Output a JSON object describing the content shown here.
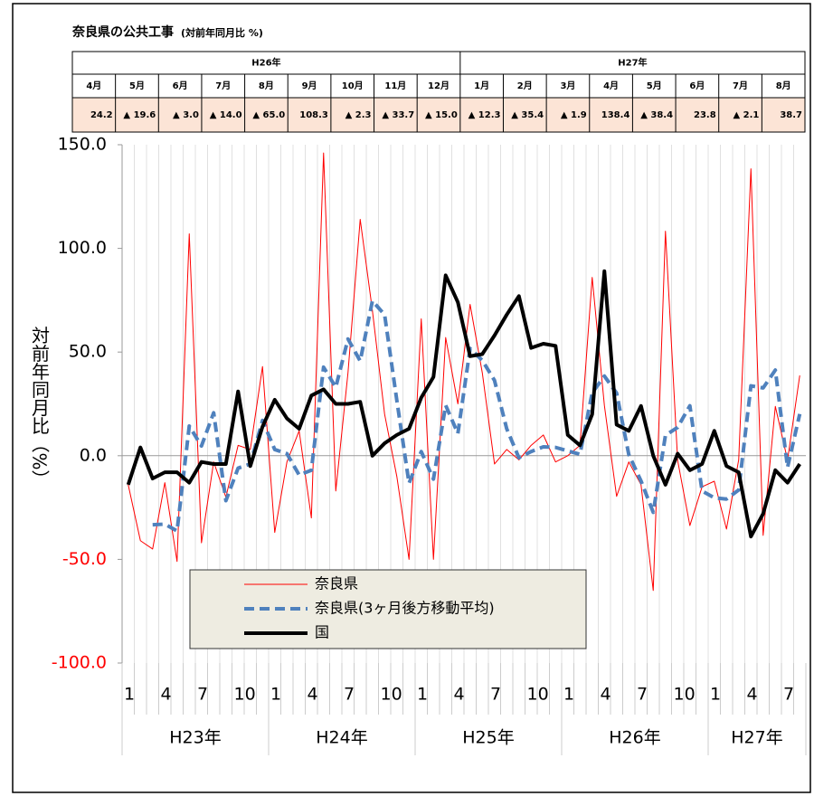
{
  "table": {
    "title": "奈良県の公共工事",
    "title_note": "(対前年同月比 %)",
    "groups": [
      {
        "label": "H26年",
        "months": [
          "4月",
          "5月",
          "6月",
          "7月",
          "8月",
          "9月",
          "10月",
          "11月",
          "12月"
        ],
        "values": [
          "24.2",
          "▲ 19.6",
          "▲ 3.0",
          "▲ 14.0",
          "▲ 65.0",
          "108.3",
          "▲ 2.3",
          "▲ 33.7",
          "▲ 15.0"
        ]
      },
      {
        "label": "H27年",
        "months": [
          "1月",
          "2月",
          "3月",
          "4月",
          "5月",
          "6月",
          "7月",
          "8月"
        ],
        "values": [
          "▲ 12.3",
          "▲ 35.4",
          "▲ 1.9",
          "138.4",
          "▲ 38.4",
          "23.8",
          "▲ 2.1",
          "38.7"
        ]
      }
    ]
  },
  "chart_data": {
    "type": "line",
    "y_label": "対前年同月比（%）",
    "categories": [
      "1",
      null,
      null,
      "4",
      null,
      null,
      "7",
      null,
      null,
      "10",
      null,
      null,
      "1",
      null,
      null,
      "4",
      null,
      null,
      "7",
      null,
      null,
      "10",
      null,
      null,
      "1",
      null,
      null,
      "4",
      null,
      null,
      "7",
      null,
      null,
      "10",
      null,
      null,
      "1",
      null,
      null,
      "4",
      null,
      null,
      "7",
      null,
      null,
      "10",
      null,
      null,
      "1",
      null,
      null,
      "4",
      null,
      null,
      "7",
      null
    ],
    "year_labels": [
      "H23年",
      "H24年",
      "H25年",
      "H26年",
      "H27年"
    ],
    "ylim": [
      -100,
      150
    ],
    "yticks": [
      {
        "value": -100,
        "label": "-100.0"
      },
      {
        "value": -50,
        "label": "-50.0"
      },
      {
        "value": 0,
        "label": "0.0"
      },
      {
        "value": 50,
        "label": "50.0"
      },
      {
        "value": 100,
        "label": "100.0"
      },
      {
        "value": 150,
        "label": "150.0"
      }
    ],
    "negative_tick_color": "#ff0000",
    "series": [
      {
        "name": "奈良県",
        "color": "#ff0000",
        "style": "thin",
        "values": [
          -14,
          -41,
          -45,
          -13,
          -51,
          107,
          -42,
          -3,
          -20,
          5,
          3,
          43,
          -37,
          -3,
          12,
          -30,
          146,
          -17,
          40,
          114,
          70,
          20,
          -10,
          -50,
          66,
          -50,
          57,
          25,
          73,
          40,
          -4,
          3,
          -2,
          5,
          10,
          -3,
          0,
          5,
          86,
          24.2,
          -19.6,
          -3.0,
          -14.0,
          -65.0,
          108.3,
          -2.3,
          -33.7,
          -15.0,
          -12.3,
          -35.4,
          -1.9,
          138.4,
          -38.4,
          23.8,
          -2.1,
          38.7
        ]
      },
      {
        "name": "奈良県(3ヶ月後方移動平均)",
        "color": "#4f81bd",
        "style": "dashed",
        "values": [
          null,
          null,
          -33.3,
          -33.0,
          -36.3,
          14.3,
          4.7,
          20.7,
          -21.7,
          -6,
          -4,
          17,
          3,
          1,
          -9.3,
          -7,
          42.7,
          33,
          56.3,
          45.7,
          74.7,
          68,
          26.7,
          -13.3,
          2,
          -11.3,
          24.3,
          10.7,
          51.7,
          46,
          36.3,
          13,
          -1,
          2,
          4.3,
          4,
          2.3,
          0.7,
          30.3,
          38.4,
          30.2,
          0.5,
          -12.2,
          -27.3,
          9.8,
          13.7,
          24.1,
          -17,
          -20.3,
          -20.9,
          -16.5,
          33.7,
          32.7,
          41.3,
          -5.6,
          20.1
        ]
      },
      {
        "name": "国",
        "color": "#000000",
        "style": "thick",
        "values": [
          -14,
          4,
          -11,
          -8,
          -8,
          -13,
          -3,
          -4,
          -4,
          31,
          -5,
          14,
          27,
          18,
          13,
          29,
          32,
          25,
          25,
          26,
          0,
          6,
          10,
          13,
          28,
          38,
          87,
          74,
          48,
          49,
          58,
          68,
          77,
          52,
          54,
          53,
          10,
          5,
          20,
          89,
          15,
          12,
          24,
          0,
          -14,
          1,
          -7,
          -4,
          12,
          -5,
          -8,
          -39,
          -28,
          -7,
          -13,
          -4
        ]
      }
    ],
    "legend": "lower-left"
  }
}
